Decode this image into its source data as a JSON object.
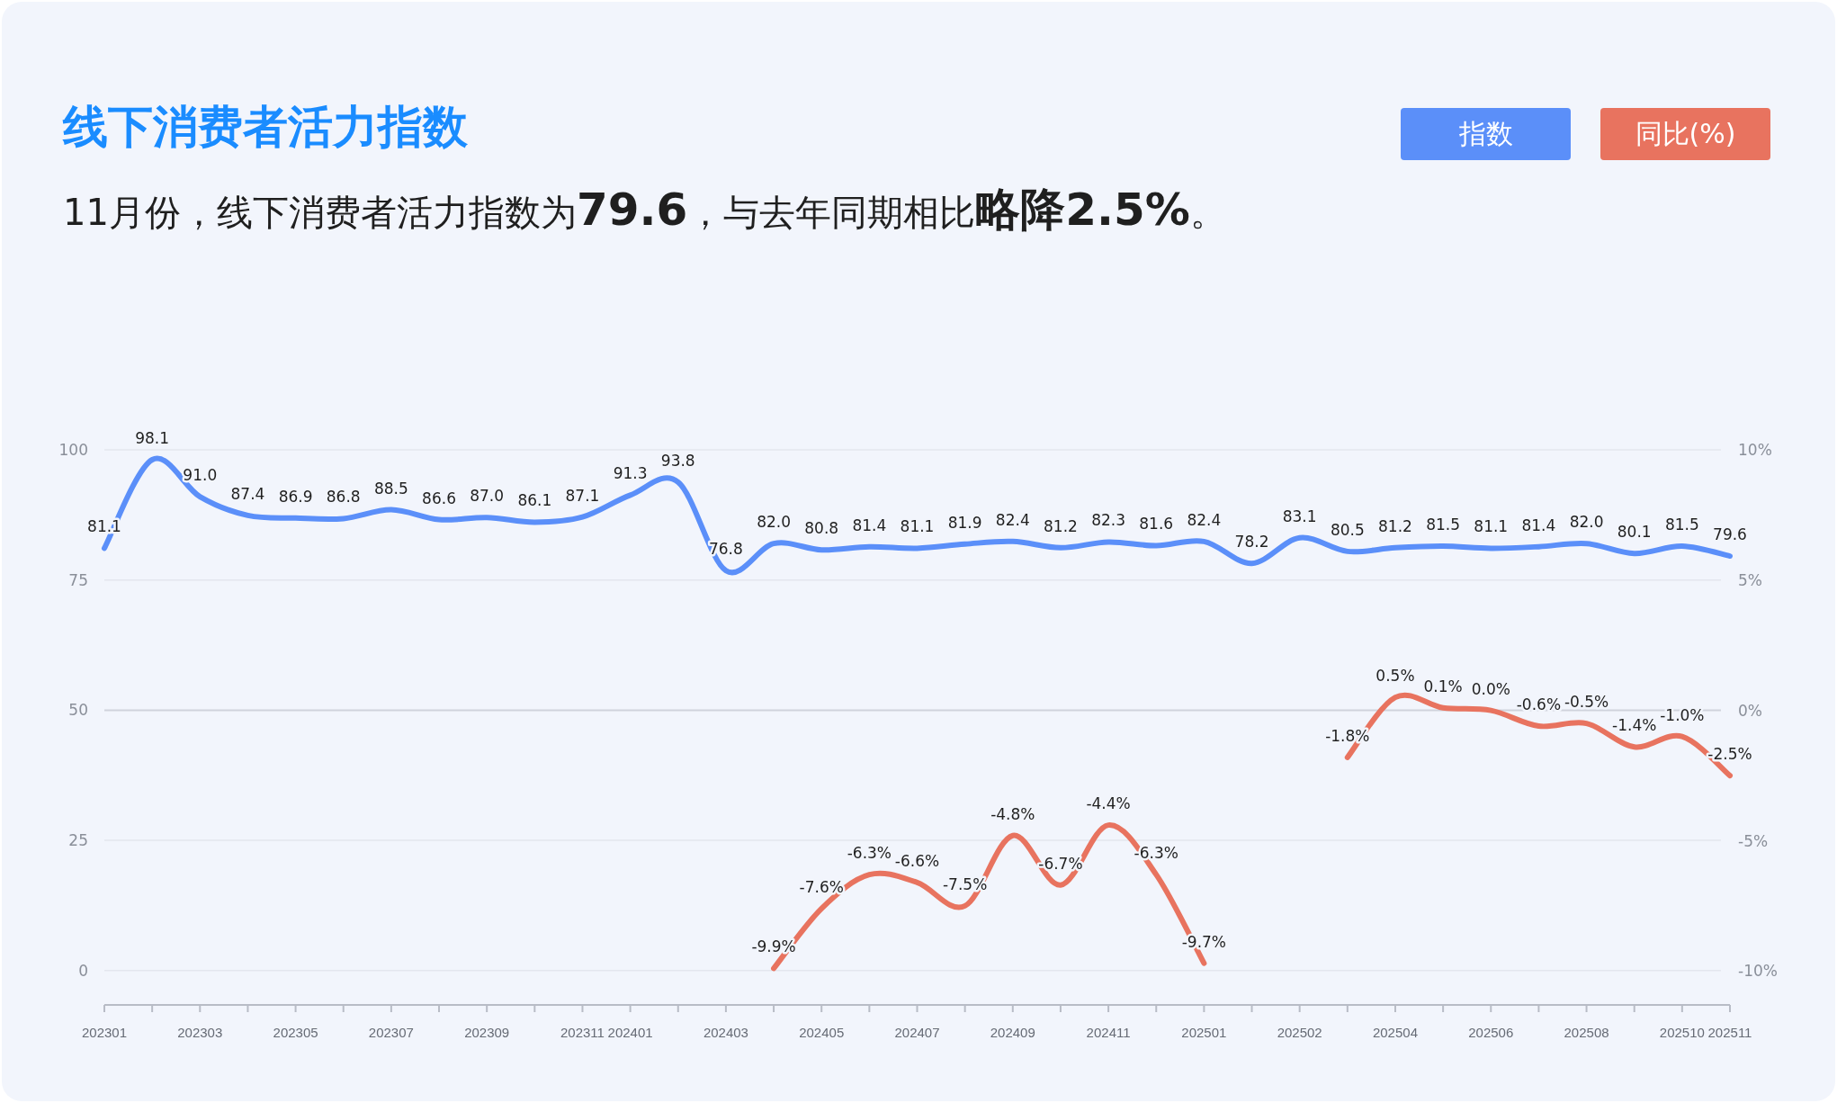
{
  "chart_data": {
    "type": "line",
    "title": "线下消费者活力指数",
    "subtitle": "11月份，线下消费者活力指数为**79.6**，与去年同期相比**略降2.5%**。",
    "categories": [
      "202301",
      null,
      "202303",
      null,
      "202305",
      null,
      "202307",
      null,
      "202309",
      null,
      "202311",
      "202401",
      null,
      "202403",
      null,
      "202405",
      null,
      "202407",
      null,
      "202409",
      null,
      "202411",
      null,
      "202501",
      null,
      "202502",
      null,
      "202504",
      null,
      "202506",
      null,
      "202508",
      null,
      "202510",
      "202511"
    ],
    "ylim": [
      -6.6,
      100
    ],
    "yticks": [
      0,
      25,
      50,
      75,
      100
    ],
    "y2lim": [
      -11.3,
      10
    ],
    "y2ticks": [
      {
        "value": -10,
        "label": "-10%"
      },
      {
        "value": -5,
        "label": "-5%"
      },
      {
        "value": 0,
        "label": "0%"
      },
      {
        "value": 5,
        "label": "5%"
      },
      {
        "value": 10,
        "label": "10%"
      }
    ],
    "grid": "y",
    "legend": "top right",
    "marker": "none",
    "series": [
      {
        "name": "指数",
        "color": "#5b8ff9",
        "values": [
          81.1,
          98.1,
          91.0,
          87.4,
          86.9,
          86.8,
          88.5,
          86.6,
          87.0,
          86.1,
          87.1,
          91.3,
          93.8,
          76.8,
          82.0,
          80.8,
          81.4,
          81.1,
          81.9,
          82.4,
          81.2,
          82.3,
          81.6,
          82.4,
          78.2,
          83.1,
          80.5,
          81.2,
          81.5,
          81.1,
          81.4,
          82.0,
          80.1,
          81.5,
          79.6
        ],
        "value_labels": [
          "81.1",
          "98.1",
          "91.0",
          "87.4",
          "86.9",
          "86.8",
          "88.5",
          "86.6",
          "87.0",
          "86.1",
          "87.1",
          "91.3",
          "93.8",
          "76.8",
          "82.0",
          "80.8",
          "81.4",
          "81.1",
          "81.9",
          "82.4",
          "81.2",
          "82.3",
          "81.6",
          "82.4",
          "78.2",
          "83.1",
          "80.5",
          "81.2",
          "81.5",
          "81.1",
          "81.4",
          "82.0",
          "80.1",
          "81.5",
          "79.6"
        ]
      },
      {
        "name": "同比(%)",
        "color": "#e8735f",
        "axis": "y2",
        "values": [
          null,
          null,
          null,
          null,
          null,
          null,
          null,
          null,
          null,
          null,
          null,
          null,
          null,
          null,
          -9.9,
          -7.6,
          -6.3,
          -6.6,
          -7.5,
          -4.8,
          -6.7,
          -4.4,
          -6.3,
          -9.7,
          null,
          null,
          -1.8,
          0.5,
          0.1,
          0.0,
          -0.6,
          -0.5,
          -1.4,
          -1.0,
          -2.5
        ],
        "value_labels": [
          null,
          null,
          null,
          null,
          null,
          null,
          null,
          null,
          null,
          null,
          null,
          null,
          null,
          null,
          "-9.9%",
          "-7.6%",
          "-6.3%",
          "-6.6%",
          "-7.5%",
          "-4.8%",
          "-6.7%",
          "-4.4%",
          "-6.3%",
          "-9.7%",
          null,
          null,
          "-1.8%",
          "0.5%",
          "0.1%",
          "0.0%",
          "-0.6%",
          "-0.5%",
          "-1.4%",
          "-1.0%",
          "-2.5%"
        ]
      }
    ]
  }
}
